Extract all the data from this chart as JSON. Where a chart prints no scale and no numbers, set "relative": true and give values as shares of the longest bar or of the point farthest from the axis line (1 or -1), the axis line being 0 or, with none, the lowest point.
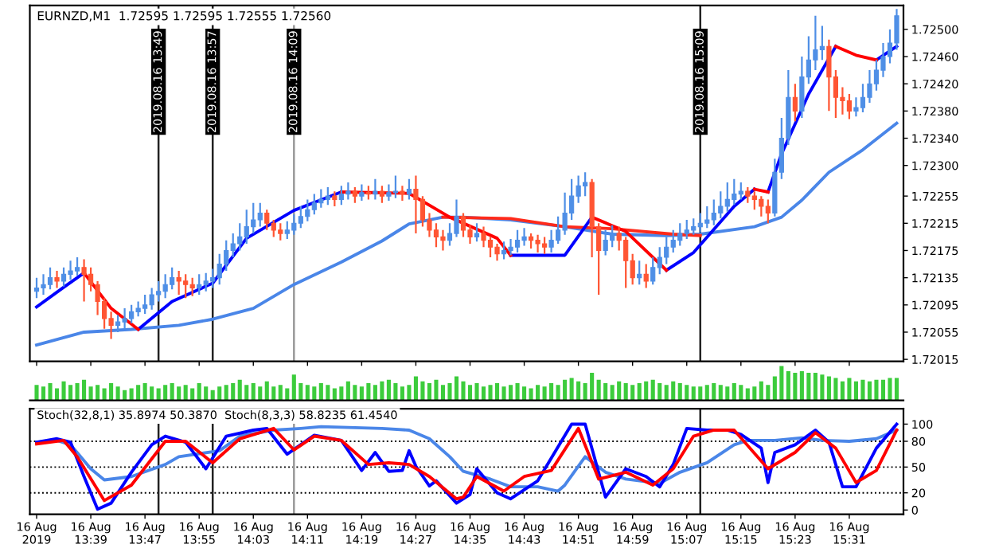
{
  "chart_data": [
    {
      "type": "candlestick",
      "title": "EURNZD,M1  1.72595 1.72595 1.72555 1.72560",
      "colors": [
        "#4f8fe6",
        "#4f8fe6",
        "#4f8fe6",
        "#ff5533",
        "#4f8fe6",
        "#4f8fe6",
        "#4f8fe6",
        "#ff5533",
        "#ff5533",
        "#ff5533",
        "#ff5533",
        "#ff5533",
        "#4f8fe6",
        "#4f8fe6",
        "#4f8fe6",
        "#4f8fe6",
        "#4f8fe6",
        "#4f8fe6",
        "#4f8fe6",
        "#4f8fe6",
        "#4f8fe6",
        "#ff5533",
        "#ff5533",
        "#ff5533",
        "#4f8fe6",
        "#4f8fe6",
        "#4f8fe6",
        "#4f8fe6",
        "#4f8fe6",
        "#4f8fe6",
        "#4f8fe6",
        "#4f8fe6",
        "#4f8fe6",
        "#4f8fe6",
        "#ff5533",
        "#ff5533",
        "#ff5533",
        "#4f8fe6",
        "#4f8fe6",
        "#4f8fe6",
        "#4f8fe6",
        "#4f8fe6",
        "#4f8fe6",
        "#4f8fe6",
        "#ff5533",
        "#4f8fe6",
        "#4f8fe6",
        "#ff5533",
        "#4f8fe6",
        "#ff5533",
        "#4f8fe6",
        "#ff5533",
        "#4f8fe6",
        "#4f8fe6",
        "#ff5533",
        "#4f8fe6",
        "#ff5533",
        "#ff5533",
        "#ff5533",
        "#ff5533",
        "#ff5533",
        "#4f8fe6",
        "#4f8fe6",
        "#ff5533",
        "#ff5533",
        "#4f8fe6",
        "#ff5533",
        "#ff5533",
        "#ff5533",
        "#4f8fe6",
        "#4f8fe6",
        "#4f8fe6",
        "#4f8fe6",
        "#ff5533",
        "#ff5533",
        "#ff5533",
        "#4f8fe6",
        "#4f8fe6",
        "#4f8fe6",
        "#4f8fe6",
        "#4f8fe6",
        "#4f8fe6",
        "#ff5533",
        "#ff5533",
        "#4f8fe6",
        "#4f8fe6",
        "#ff5533",
        "#ff5533",
        "#ff5533",
        "#4f8fe6",
        "#ff5533",
        "#4f8fe6",
        "#4f8fe6",
        "#4f8fe6",
        "#4f8fe6",
        "#4f8fe6",
        "#4f8fe6",
        "#4f8fe6",
        "#4f8fe6",
        "#4f8fe6",
        "#4f8fe6",
        "#4f8fe6",
        "#4f8fe6",
        "#4f8fe6",
        "#4f8fe6",
        "#ff5533",
        "#ff5533",
        "#ff5533",
        "#ff5533",
        "#4f8fe6",
        "#4f8fe6",
        "#4f8fe6",
        "#ff5533",
        "#4f8fe6",
        "#4f8fe6",
        "#4f8fe6",
        "#4f8fe6",
        "#ff5533",
        "#ff5533",
        "#ff5533",
        "#ff5533",
        "#4f8fe6",
        "#4f8fe6",
        "#4f8fe6",
        "#4f8fe6",
        "#4f8fe6",
        "#4f8fe6",
        "#4f8fe6"
      ],
      "x": [
        "2019-08-16T13:31",
        "2019-08-16T13:32",
        "2019-08-16T13:33",
        "2019-08-16T13:34",
        "2019-08-16T13:35",
        "2019-08-16T13:36",
        "2019-08-16T13:37",
        "2019-08-16T13:38",
        "2019-08-16T13:39",
        "2019-08-16T13:40",
        "2019-08-16T13:41",
        "2019-08-16T13:42",
        "2019-08-16T13:43",
        "2019-08-16T13:44",
        "2019-08-16T13:45",
        "2019-08-16T13:46",
        "2019-08-16T13:47",
        "2019-08-16T13:48",
        "2019-08-16T13:49",
        "2019-08-16T13:50",
        "2019-08-16T13:51",
        "2019-08-16T13:52",
        "2019-08-16T13:53",
        "2019-08-16T13:54",
        "2019-08-16T13:55",
        "2019-08-16T13:56",
        "2019-08-16T13:57",
        "2019-08-16T13:58",
        "2019-08-16T13:59",
        "2019-08-16T14:00",
        "2019-08-16T14:01",
        "2019-08-16T14:02",
        "2019-08-16T14:03",
        "2019-08-16T14:04",
        "2019-08-16T14:05",
        "2019-08-16T14:06",
        "2019-08-16T14:07",
        "2019-08-16T14:08",
        "2019-08-16T14:09",
        "2019-08-16T14:10",
        "2019-08-16T14:11",
        "2019-08-16T14:12",
        "2019-08-16T14:13",
        "2019-08-16T14:14",
        "2019-08-16T14:15",
        "2019-08-16T14:16",
        "2019-08-16T14:17",
        "2019-08-16T14:18",
        "2019-08-16T14:19",
        "2019-08-16T14:20",
        "2019-08-16T14:21",
        "2019-08-16T14:22",
        "2019-08-16T14:23",
        "2019-08-16T14:24",
        "2019-08-16T14:25",
        "2019-08-16T14:26",
        "2019-08-16T14:27",
        "2019-08-16T14:28",
        "2019-08-16T14:29",
        "2019-08-16T14:30",
        "2019-08-16T14:31",
        "2019-08-16T14:32",
        "2019-08-16T14:33",
        "2019-08-16T14:34",
        "2019-08-16T14:35",
        "2019-08-16T14:36",
        "2019-08-16T14:37",
        "2019-08-16T14:38",
        "2019-08-16T14:39",
        "2019-08-16T14:40",
        "2019-08-16T14:41",
        "2019-08-16T14:42",
        "2019-08-16T14:43",
        "2019-08-16T14:44",
        "2019-08-16T14:45",
        "2019-08-16T14:46",
        "2019-08-16T14:47",
        "2019-08-16T14:48",
        "2019-08-16T14:49",
        "2019-08-16T14:50",
        "2019-08-16T14:51",
        "2019-08-16T14:52",
        "2019-08-16T14:53",
        "2019-08-16T14:54",
        "2019-08-16T14:55",
        "2019-08-16T14:56",
        "2019-08-16T14:57",
        "2019-08-16T14:58",
        "2019-08-16T14:59",
        "2019-08-16T15:00",
        "2019-08-16T15:01",
        "2019-08-16T15:02",
        "2019-08-16T15:03",
        "2019-08-16T15:04",
        "2019-08-16T15:05",
        "2019-08-16T15:06",
        "2019-08-16T15:07",
        "2019-08-16T15:08",
        "2019-08-16T15:09",
        "2019-08-16T15:10",
        "2019-08-16T15:11",
        "2019-08-16T15:12",
        "2019-08-16T15:13",
        "2019-08-16T15:14",
        "2019-08-16T15:15",
        "2019-08-16T15:16",
        "2019-08-16T15:17",
        "2019-08-16T15:18",
        "2019-08-16T15:19",
        "2019-08-16T15:20",
        "2019-08-16T15:21",
        "2019-08-16T15:22",
        "2019-08-16T15:23",
        "2019-08-16T15:24",
        "2019-08-16T15:25",
        "2019-08-16T15:26",
        "2019-08-16T15:27",
        "2019-08-16T15:28",
        "2019-08-16T15:29",
        "2019-08-16T15:30",
        "2019-08-16T15:31",
        "2019-08-16T15:32",
        "2019-08-16T15:33",
        "2019-08-16T15:34",
        "2019-08-16T15:35",
        "2019-08-16T15:36",
        "2019-08-16T15:37",
        "2019-08-16T15:38"
      ],
      "ohlc": [
        [
          1.72115,
          1.72135,
          1.72105,
          1.7212
        ],
        [
          1.7212,
          1.7214,
          1.7211,
          1.72125
        ],
        [
          1.72125,
          1.7215,
          1.72118,
          1.72135
        ],
        [
          1.72135,
          1.72145,
          1.7212,
          1.7213
        ],
        [
          1.7213,
          1.7215,
          1.72122,
          1.7214
        ],
        [
          1.7214,
          1.7216,
          1.72132,
          1.72145
        ],
        [
          1.72145,
          1.72165,
          1.72138,
          1.7215
        ],
        [
          1.7215,
          1.72162,
          1.721,
          1.7214
        ],
        [
          1.7214,
          1.7215,
          1.72115,
          1.72125
        ],
        [
          1.72125,
          1.7213,
          1.7208,
          1.721
        ],
        [
          1.721,
          1.72105,
          1.7206,
          1.72075
        ],
        [
          1.72075,
          1.72085,
          1.72045,
          1.72065
        ],
        [
          1.72065,
          1.7208,
          1.72055,
          1.7207
        ],
        [
          1.7207,
          1.7209,
          1.7206,
          1.72075
        ],
        [
          1.72075,
          1.72095,
          1.72068,
          1.72085
        ],
        [
          1.72085,
          1.721,
          1.72078,
          1.7209
        ],
        [
          1.7209,
          1.7211,
          1.72082,
          1.72095
        ],
        [
          1.72095,
          1.7212,
          1.72088,
          1.7211
        ],
        [
          1.7211,
          1.7213,
          1.721,
          1.72115
        ],
        [
          1.72115,
          1.7214,
          1.72105,
          1.72125
        ],
        [
          1.72125,
          1.7215,
          1.72118,
          1.72135
        ],
        [
          1.72135,
          1.72145,
          1.7211,
          1.7213
        ],
        [
          1.7213,
          1.7214,
          1.72105,
          1.72125
        ],
        [
          1.72125,
          1.72135,
          1.72108,
          1.7212
        ],
        [
          1.7212,
          1.7214,
          1.7211,
          1.72125
        ],
        [
          1.72125,
          1.72142,
          1.72115,
          1.7213
        ],
        [
          1.7213,
          1.72148,
          1.7212,
          1.72135
        ],
        [
          1.72135,
          1.7217,
          1.72125,
          1.72155
        ],
        [
          1.72155,
          1.7219,
          1.72145,
          1.72175
        ],
        [
          1.72175,
          1.722,
          1.72165,
          1.72185
        ],
        [
          1.72185,
          1.72215,
          1.72175,
          1.72195
        ],
        [
          1.72195,
          1.72235,
          1.72185,
          1.7221
        ],
        [
          1.7221,
          1.72245,
          1.722,
          1.7222
        ],
        [
          1.7222,
          1.72245,
          1.7221,
          1.7223
        ],
        [
          1.7223,
          1.72235,
          1.72205,
          1.72215
        ],
        [
          1.72215,
          1.7222,
          1.72195,
          1.72205
        ],
        [
          1.72205,
          1.72215,
          1.7219,
          1.722
        ],
        [
          1.722,
          1.72218,
          1.72192,
          1.72205
        ],
        [
          1.72205,
          1.72228,
          1.72198,
          1.72215
        ],
        [
          1.72215,
          1.7224,
          1.72208,
          1.72225
        ],
        [
          1.72225,
          1.7225,
          1.72218,
          1.72235
        ],
        [
          1.72235,
          1.72258,
          1.72228,
          1.72245
        ],
        [
          1.72245,
          1.72265,
          1.72238,
          1.7225
        ],
        [
          1.7225,
          1.72268,
          1.72242,
          1.72255
        ],
        [
          1.72255,
          1.72262,
          1.7224,
          1.7225
        ],
        [
          1.7225,
          1.7227,
          1.72242,
          1.72258
        ],
        [
          1.72258,
          1.72275,
          1.7225,
          1.72262
        ],
        [
          1.72262,
          1.72268,
          1.72245,
          1.72255
        ],
        [
          1.72255,
          1.72272,
          1.72248,
          1.7226
        ],
        [
          1.7226,
          1.7227,
          1.7225,
          1.72258
        ],
        [
          1.72258,
          1.7228,
          1.7225,
          1.72262
        ],
        [
          1.72262,
          1.7227,
          1.72245,
          1.72255
        ],
        [
          1.72255,
          1.72272,
          1.72248,
          1.7226
        ],
        [
          1.7226,
          1.72285,
          1.72252,
          1.72262
        ],
        [
          1.72262,
          1.7227,
          1.72248,
          1.72258
        ],
        [
          1.72258,
          1.7228,
          1.7225,
          1.72265
        ],
        [
          1.72265,
          1.72285,
          1.722,
          1.7225
        ],
        [
          1.7225,
          1.72255,
          1.7221,
          1.7222
        ],
        [
          1.7222,
          1.7223,
          1.72195,
          1.72205
        ],
        [
          1.72205,
          1.72215,
          1.7218,
          1.72195
        ],
        [
          1.72195,
          1.72205,
          1.72175,
          1.7219
        ],
        [
          1.7219,
          1.72215,
          1.72182,
          1.722
        ],
        [
          1.722,
          1.7225,
          1.72195,
          1.72225
        ],
        [
          1.72225,
          1.7223,
          1.72195,
          1.72205
        ],
        [
          1.72205,
          1.72212,
          1.72185,
          1.72195
        ],
        [
          1.72195,
          1.72215,
          1.72188,
          1.722
        ],
        [
          1.722,
          1.7221,
          1.7218,
          1.7219
        ],
        [
          1.7219,
          1.72195,
          1.72165,
          1.7218
        ],
        [
          1.7218,
          1.72185,
          1.7216,
          1.7217
        ],
        [
          1.7217,
          1.72188,
          1.72162,
          1.72175
        ],
        [
          1.72175,
          1.72192,
          1.72168,
          1.7218
        ],
        [
          1.7218,
          1.72205,
          1.72172,
          1.7219
        ],
        [
          1.7219,
          1.72208,
          1.72182,
          1.72195
        ],
        [
          1.72195,
          1.722,
          1.72178,
          1.7219
        ],
        [
          1.7219,
          1.72198,
          1.72172,
          1.72185
        ],
        [
          1.72185,
          1.72195,
          1.7217,
          1.7218
        ],
        [
          1.7218,
          1.72205,
          1.72172,
          1.7219
        ],
        [
          1.7219,
          1.72225,
          1.72185,
          1.72205
        ],
        [
          1.72205,
          1.7226,
          1.72198,
          1.7223
        ],
        [
          1.7223,
          1.7228,
          1.7222,
          1.72255
        ],
        [
          1.72255,
          1.72285,
          1.72245,
          1.7227
        ],
        [
          1.7227,
          1.7229,
          1.72255,
          1.72275
        ],
        [
          1.72275,
          1.7228,
          1.72165,
          1.7221
        ],
        [
          1.7221,
          1.72215,
          1.7211,
          1.72175
        ],
        [
          1.72175,
          1.72205,
          1.72168,
          1.7219
        ],
        [
          1.7219,
          1.72212,
          1.7218,
          1.722
        ],
        [
          1.722,
          1.7221,
          1.72175,
          1.7219
        ],
        [
          1.7219,
          1.72195,
          1.7212,
          1.7216
        ],
        [
          1.7216,
          1.7217,
          1.72125,
          1.72135
        ],
        [
          1.72135,
          1.7216,
          1.72125,
          1.7214
        ],
        [
          1.7214,
          1.72155,
          1.7212,
          1.7213
        ],
        [
          1.7213,
          1.72165,
          1.72125,
          1.7215
        ],
        [
          1.7215,
          1.7218,
          1.7214,
          1.72165
        ],
        [
          1.72165,
          1.72195,
          1.72155,
          1.7218
        ],
        [
          1.7218,
          1.72205,
          1.72172,
          1.7219
        ],
        [
          1.7219,
          1.72215,
          1.72182,
          1.722
        ],
        [
          1.722,
          1.7222,
          1.72192,
          1.72205
        ],
        [
          1.72205,
          1.72222,
          1.72198,
          1.7221
        ],
        [
          1.7221,
          1.7223,
          1.72202,
          1.72215
        ],
        [
          1.72215,
          1.7224,
          1.72208,
          1.7222
        ],
        [
          1.7222,
          1.7225,
          1.72212,
          1.7223
        ],
        [
          1.7223,
          1.72262,
          1.72222,
          1.7224
        ],
        [
          1.7224,
          1.72275,
          1.72232,
          1.7225
        ],
        [
          1.7225,
          1.7228,
          1.72242,
          1.72258
        ],
        [
          1.72258,
          1.72275,
          1.7225,
          1.72262
        ],
        [
          1.72262,
          1.72268,
          1.72245,
          1.72255
        ],
        [
          1.72255,
          1.72262,
          1.72235,
          1.7225
        ],
        [
          1.7225,
          1.72255,
          1.72225,
          1.7224
        ],
        [
          1.7224,
          1.7225,
          1.72215,
          1.7223
        ],
        [
          1.7223,
          1.7231,
          1.72225,
          1.7229
        ],
        [
          1.7229,
          1.7237,
          1.7228,
          1.7234
        ],
        [
          1.7234,
          1.7244,
          1.7233,
          1.724
        ],
        [
          1.724,
          1.7242,
          1.72365,
          1.7238
        ],
        [
          1.7238,
          1.7246,
          1.7237,
          1.7243
        ],
        [
          1.7243,
          1.7249,
          1.7242,
          1.72455
        ],
        [
          1.72455,
          1.7252,
          1.7244,
          1.7247
        ],
        [
          1.7247,
          1.72505,
          1.72455,
          1.72475
        ],
        [
          1.72475,
          1.72485,
          1.7238,
          1.7243
        ],
        [
          1.7243,
          1.7244,
          1.7237,
          1.724
        ],
        [
          1.724,
          1.72415,
          1.72375,
          1.72395
        ],
        [
          1.72395,
          1.72405,
          1.72368,
          1.7238
        ],
        [
          1.7238,
          1.724,
          1.72372,
          1.72385
        ],
        [
          1.72385,
          1.7242,
          1.72378,
          1.724
        ],
        [
          1.724,
          1.7244,
          1.72392,
          1.7242
        ],
        [
          1.7242,
          1.72455,
          1.7241,
          1.7244
        ],
        [
          1.7244,
          1.7248,
          1.7243,
          1.7246
        ],
        [
          1.7246,
          1.725,
          1.7245,
          1.7248
        ],
        [
          1.7248,
          1.7253,
          1.7247,
          1.7252
        ]
      ],
      "series": [
        {
          "type": "line",
          "color": "#4a86e8",
          "x": [
            "2019-08-16T13:31",
            "2019-08-16T13:38",
            "2019-08-16T13:45",
            "2019-08-16T13:52",
            "2019-08-16T13:57",
            "2019-08-16T14:03",
            "2019-08-16T14:09",
            "2019-08-16T14:16",
            "2019-08-16T14:22",
            "2019-08-16T14:26",
            "2019-08-16T14:31",
            "2019-08-16T14:34",
            "2019-08-16T14:41",
            "2019-08-16T14:49",
            "2019-08-16T14:56",
            "2019-08-16T15:04",
            "2019-08-16T15:09",
            "2019-08-16T15:17",
            "2019-08-16T15:21",
            "2019-08-16T15:24",
            "2019-08-16T15:28",
            "2019-08-16T15:33",
            "2019-08-16T15:38"
          ],
          "values": [
            1.72036,
            1.72055,
            1.72059,
            1.72065,
            1.72074,
            1.7209,
            1.72125,
            1.72158,
            1.72189,
            1.72214,
            1.72224,
            1.72224,
            1.7222,
            1.7221,
            1.72199,
            1.72197,
            1.72199,
            1.7221,
            1.72224,
            1.72249,
            1.7229,
            1.72323,
            1.72362
          ]
        },
        {
          "type": "line",
          "color": "#ff2a1a",
          "x": [
            "2019-08-16T14:31",
            "2019-08-16T14:41",
            "2019-08-16T14:49",
            "2019-08-16T14:56",
            "2019-08-16T15:05",
            "2019-08-16T15:09"
          ],
          "values": [
            1.72224,
            1.72222,
            1.7221,
            1.72207,
            1.72199,
            1.72197
          ]
        },
        {
          "type": "line",
          "color": "#0000ff",
          "x": [
            "2019-08-16T13:31",
            "2019-08-16T13:35",
            "2019-08-16T13:38",
            "2019-08-16T13:42",
            "2019-08-16T13:46",
            "2019-08-16T13:51",
            "2019-08-16T13:57",
            "2019-08-16T14:02",
            "2019-08-16T14:09",
            "2019-08-16T14:16",
            "2019-08-16T14:26",
            "2019-08-16T14:41",
            "2019-08-16T14:49",
            "2019-08-16T14:53",
            "2019-08-16T14:58",
            "2019-08-16T15:04",
            "2019-08-16T15:08",
            "2019-08-16T15:14",
            "2019-08-16T15:17",
            "2019-08-16T15:18",
            "2019-08-16T15:19",
            "2019-08-16T15:21",
            "2019-08-16T15:25",
            "2019-08-16T15:29",
            "2019-08-16T15:32",
            "2019-08-16T15:35",
            "2019-08-16T15:38"
          ],
          "values": [
            1.72092,
            1.72121,
            1.72142,
            null,
            1.72059,
            1.721,
            1.72127,
            1.72193,
            1.72234,
            1.72261,
            null,
            1.72168,
            1.72168,
            1.72224,
            null,
            1.72146,
            1.72172,
            1.7224,
            1.72265,
            null,
            1.72261,
            1.72317,
            1.72405,
            1.72475,
            null,
            1.72455,
            1.72475
          ]
        },
        {
          "type": "line",
          "color": "#ff0000",
          "x": [
            "2019-08-16T13:38",
            "2019-08-16T13:42",
            "2019-08-16T13:46",
            "2019-08-16T14:00",
            "2019-08-16T14:16",
            "2019-08-16T14:26",
            "2019-08-16T14:32",
            "2019-08-16T14:39",
            "2019-08-16T14:41",
            "2019-08-16T14:47",
            "2019-08-16T14:53",
            "2019-08-16T14:58",
            "2019-08-16T15:04",
            "2019-08-16T15:10",
            "2019-08-16T15:17",
            "2019-08-16T15:19",
            "2019-08-16T15:22",
            "2019-08-16T15:29",
            "2019-08-16T15:32",
            "2019-08-16T15:35"
          ],
          "values": [
            1.72142,
            1.7209,
            1.72059,
            null,
            1.72261,
            1.72259,
            1.72224,
            1.72193,
            1.72168,
            null,
            1.72224,
            1.72203,
            1.72146,
            null,
            1.72265,
            1.72261,
            null,
            1.72475,
            1.72462,
            1.72455
          ]
        }
      ],
      "ref_lines": [
        {
          "axis": "x",
          "value": "2019-08-16T13:49",
          "label": "2019.08.16 13:49",
          "color": "#222222"
        },
        {
          "axis": "x",
          "value": "2019-08-16T13:57",
          "label": "2019.08.16 13:57",
          "color": "#222222"
        },
        {
          "axis": "x",
          "value": "2019-08-16T14:09",
          "label": "2019.08.16 14:09",
          "color": "#999999"
        },
        {
          "axis": "x",
          "value": "2019-08-16T15:09",
          "label": "2019.08.16 15:09",
          "color": "#222222"
        }
      ],
      "xlim": [
        "2019-08-16T13:30",
        "2019-08-16T15:39"
      ],
      "xticks": [
        "2019-08-16T13:31",
        "2019-08-16T13:39",
        "2019-08-16T13:47",
        "2019-08-16T13:55",
        "2019-08-16T14:03",
        "2019-08-16T14:11",
        "2019-08-16T14:19",
        "2019-08-16T14:27",
        "2019-08-16T14:35",
        "2019-08-16T14:43",
        "2019-08-16T14:51",
        "2019-08-16T14:59",
        "2019-08-16T15:07",
        "2019-08-16T15:15",
        "2019-08-16T15:23",
        "2019-08-16T15:31"
      ],
      "ylim": [
        1.72012,
        1.72535
      ],
      "yticks": [
        {
          "value": 1.725,
          "label": "1.72500"
        },
        {
          "value": 1.7246,
          "label": "1.72460"
        },
        {
          "value": 1.7242,
          "label": "1.72420"
        },
        {
          "value": 1.7238,
          "label": "1.72380"
        },
        {
          "value": 1.7234,
          "label": "1.72340"
        },
        {
          "value": 1.723,
          "label": "1.72300"
        },
        {
          "value": 1.72255,
          "label": "1.72255"
        },
        {
          "value": 1.72215,
          "label": "1.72215"
        },
        {
          "value": 1.72175,
          "label": "1.72175"
        },
        {
          "value": 1.72135,
          "label": "1.72135"
        },
        {
          "value": 1.72095,
          "label": "1.72095"
        },
        {
          "value": 1.72055,
          "label": "1.72055"
        },
        {
          "value": 1.72015,
          "label": "1.72015"
        }
      ],
      "tick_labels": "y",
      "grid": false,
      "legend": false
    },
    {
      "type": "bar",
      "relative": true,
      "color": "#3ccc3c",
      "tick_labels": false,
      "categories": [
        null,
        null,
        null,
        null,
        null,
        null,
        null,
        null,
        null,
        null,
        null,
        null,
        null,
        null,
        null,
        null,
        null,
        null,
        null,
        null,
        null,
        null,
        null,
        null,
        null,
        null,
        null,
        null,
        null,
        null,
        null,
        null,
        null,
        null,
        null,
        null,
        null,
        null,
        null,
        null,
        null,
        null,
        null,
        null,
        null,
        null,
        null,
        null,
        null,
        null,
        null,
        null,
        null,
        null,
        null,
        null,
        null,
        null,
        null,
        null,
        null,
        null,
        null,
        null,
        null,
        null,
        null,
        null,
        null,
        null,
        null,
        null,
        null,
        null,
        null,
        null,
        null,
        null,
        null,
        null,
        null,
        null,
        null,
        null,
        null,
        null,
        null,
        null,
        null,
        null,
        null,
        null,
        null,
        null,
        null,
        null,
        null,
        null,
        null,
        null,
        null,
        null,
        null,
        null,
        null,
        null,
        null,
        null,
        null,
        null,
        null,
        null,
        null,
        null,
        null,
        null,
        null,
        null,
        null,
        null,
        null,
        null,
        null,
        null,
        null,
        null,
        null,
        null
      ],
      "values": [
        0.45,
        0.4,
        0.5,
        0.35,
        0.55,
        0.45,
        0.5,
        0.6,
        0.4,
        0.45,
        0.35,
        0.5,
        0.4,
        0.3,
        0.35,
        0.45,
        0.5,
        0.4,
        0.35,
        0.45,
        0.5,
        0.4,
        0.45,
        0.35,
        0.5,
        0.4,
        0.3,
        0.4,
        0.45,
        0.5,
        0.6,
        0.45,
        0.5,
        0.4,
        0.55,
        0.4,
        0.45,
        0.35,
        0.75,
        0.5,
        0.45,
        0.4,
        0.5,
        0.45,
        0.35,
        0.4,
        0.55,
        0.45,
        0.4,
        0.5,
        0.45,
        0.55,
        0.6,
        0.5,
        0.4,
        0.45,
        0.7,
        0.55,
        0.5,
        0.6,
        0.45,
        0.5,
        0.7,
        0.55,
        0.45,
        0.5,
        0.4,
        0.45,
        0.5,
        0.4,
        0.45,
        0.5,
        0.4,
        0.35,
        0.45,
        0.4,
        0.5,
        0.45,
        0.6,
        0.65,
        0.55,
        0.5,
        0.8,
        0.6,
        0.5,
        0.45,
        0.55,
        0.5,
        0.45,
        0.5,
        0.55,
        0.6,
        0.5,
        0.45,
        0.55,
        0.5,
        0.45,
        0.4,
        0.4,
        0.45,
        0.5,
        0.45,
        0.4,
        0.5,
        0.45,
        0.35,
        0.4,
        0.55,
        0.45,
        0.7,
        1.0,
        0.85,
        0.8,
        0.85,
        0.8,
        0.8,
        0.75,
        0.7,
        0.65,
        0.55,
        0.65,
        0.55,
        0.6,
        0.55,
        0.6,
        0.6,
        0.65,
        0.65
      ]
    },
    {
      "type": "line",
      "annotations": [
        "Stoch(32,8,1) 35.8974 50.3870  Stoch(8,3,3) 58.8235 61.4540"
      ],
      "series": [
        {
          "color": "#4a86e8",
          "x": [
            "2019-08-16T13:31",
            "2019-08-16T13:34",
            "2019-08-16T13:36",
            "2019-08-16T13:39",
            "2019-08-16T13:41",
            "2019-08-16T13:45",
            "2019-08-16T13:50",
            "2019-08-16T13:52",
            "2019-08-16T13:58",
            "2019-08-16T14:01",
            "2019-08-16T14:06",
            "2019-08-16T14:10",
            "2019-08-16T14:13",
            "2019-08-16T14:22",
            "2019-08-16T14:26",
            "2019-08-16T14:29",
            "2019-08-16T14:32",
            "2019-08-16T14:34",
            "2019-08-16T14:38",
            "2019-08-16T14:41",
            "2019-08-16T14:45",
            "2019-08-16T14:48",
            "2019-08-16T14:49",
            "2019-08-16T14:52",
            "2019-08-16T14:55",
            "2019-08-16T14:58",
            "2019-08-16T15:03",
            "2019-08-16T15:06",
            "2019-08-16T15:10",
            "2019-08-16T15:14",
            "2019-08-16T15:16",
            "2019-08-16T15:20",
            "2019-08-16T15:24",
            "2019-08-16T15:27",
            "2019-08-16T15:31",
            "2019-08-16T15:35",
            "2019-08-16T15:38"
          ],
          "values": [
            79,
            81,
            76,
            48,
            35,
            39,
            53,
            62,
            69,
            86,
            93,
            95,
            97,
            95,
            93,
            83,
            62,
            45,
            36,
            27,
            27,
            22,
            29,
            62,
            44,
            36,
            31,
            44,
            55,
            76,
            81,
            81,
            84,
            81,
            80,
            83,
            93
          ]
        },
        {
          "color": "#0000ff",
          "x": [
            "2019-08-16T13:31",
            "2019-08-16T13:34",
            "2019-08-16T13:36",
            "2019-08-16T13:38",
            "2019-08-16T13:40",
            "2019-08-16T13:42",
            "2019-08-16T13:45",
            "2019-08-16T13:48",
            "2019-08-16T13:50",
            "2019-08-16T13:53",
            "2019-08-16T13:56",
            "2019-08-16T13:59",
            "2019-08-16T14:03",
            "2019-08-16T14:05",
            "2019-08-16T14:08",
            "2019-08-16T14:12",
            "2019-08-16T14:16",
            "2019-08-16T14:19",
            "2019-08-16T14:21",
            "2019-08-16T14:23",
            "2019-08-16T14:25",
            "2019-08-16T14:26",
            "2019-08-16T14:27",
            "2019-08-16T14:29",
            "2019-08-16T14:30",
            "2019-08-16T14:33",
            "2019-08-16T14:35",
            "2019-08-16T14:36",
            "2019-08-16T14:39",
            "2019-08-16T14:41",
            "2019-08-16T14:45",
            "2019-08-16T14:50",
            "2019-08-16T14:52",
            "2019-08-16T14:55",
            "2019-08-16T14:58",
            "2019-08-16T15:01",
            "2019-08-16T15:03",
            "2019-08-16T15:05",
            "2019-08-16T15:07",
            "2019-08-16T15:10",
            "2019-08-16T15:13",
            "2019-08-16T15:15",
            "2019-08-16T15:18",
            "2019-08-16T15:19",
            "2019-08-16T15:20",
            "2019-08-16T15:23",
            "2019-08-16T15:26",
            "2019-08-16T15:28",
            "2019-08-16T15:30",
            "2019-08-16T15:32",
            "2019-08-16T15:35",
            "2019-08-16T15:38"
          ],
          "values": [
            79,
            83,
            79,
            39,
            1,
            8,
            44,
            76,
            86,
            79,
            48,
            86,
            93,
            95,
            65,
            87,
            81,
            46,
            67,
            45,
            46,
            69,
            51,
            28,
            34,
            8,
            18,
            48,
            20,
            13,
            34,
            100,
            100,
            15,
            48,
            39,
            27,
            53,
            95,
            93,
            93,
            88,
            72,
            32,
            67,
            76,
            93,
            79,
            27,
            27,
            72,
            100
          ]
        },
        {
          "color": "#ff0000",
          "x": [
            "2019-08-16T13:31",
            "2019-08-16T13:35",
            "2019-08-16T13:37",
            "2019-08-16T13:41",
            "2019-08-16T13:45",
            "2019-08-16T13:50",
            "2019-08-16T13:53",
            "2019-08-16T13:57",
            "2019-08-16T14:01",
            "2019-08-16T14:06",
            "2019-08-16T14:09",
            "2019-08-16T14:12",
            "2019-08-16T14:16",
            "2019-08-16T14:20",
            "2019-08-16T14:23",
            "2019-08-16T14:26",
            "2019-08-16T14:29",
            "2019-08-16T14:33",
            "2019-08-16T14:34",
            "2019-08-16T14:36",
            "2019-08-16T14:40",
            "2019-08-16T14:43",
            "2019-08-16T14:47",
            "2019-08-16T14:51",
            "2019-08-16T14:54",
            "2019-08-16T14:58",
            "2019-08-16T15:02",
            "2019-08-16T15:05",
            "2019-08-16T15:08",
            "2019-08-16T15:11",
            "2019-08-16T15:14",
            "2019-08-16T15:19",
            "2019-08-16T15:23",
            "2019-08-16T15:26",
            "2019-08-16T15:29",
            "2019-08-16T15:32",
            "2019-08-16T15:35",
            "2019-08-16T15:38"
          ],
          "values": [
            77,
            81,
            62,
            11,
            29,
            80,
            80,
            55,
            83,
            95,
            70,
            86,
            81,
            53,
            55,
            53,
            39,
            13,
            15,
            39,
            22,
            39,
            46,
            95,
            36,
            44,
            29,
            48,
            86,
            93,
            93,
            48,
            67,
            90,
            72,
            32,
            46,
            93
          ]
        }
      ],
      "ref_lines": [
        {
          "axis": "y",
          "value": 80,
          "line_style": "dotted",
          "color": "#000000"
        },
        {
          "axis": "y",
          "value": 50,
          "line_style": "dotted",
          "color": "#000000"
        },
        {
          "axis": "y",
          "value": 20,
          "line_style": "dotted",
          "color": "#000000"
        },
        {
          "axis": "x",
          "value": "2019-08-16T13:49",
          "color": "#222222"
        },
        {
          "axis": "x",
          "value": "2019-08-16T13:57",
          "color": "#222222"
        },
        {
          "axis": "x",
          "value": "2019-08-16T14:09",
          "color": "#999999"
        },
        {
          "axis": "x",
          "value": "2019-08-16T15:09",
          "color": "#222222"
        }
      ],
      "xlim": [
        "2019-08-16T13:30",
        "2019-08-16T15:39"
      ],
      "xticks": [
        {
          "value": "2019-08-16T13:31",
          "label": "16 Aug 2019"
        },
        {
          "value": "2019-08-16T13:39",
          "label": "16 Aug 13:39"
        },
        {
          "value": "2019-08-16T13:47",
          "label": "16 Aug 13:47"
        },
        {
          "value": "2019-08-16T13:55",
          "label": "16 Aug 13:55"
        },
        {
          "value": "2019-08-16T14:03",
          "label": "16 Aug 14:03"
        },
        {
          "value": "2019-08-16T14:11",
          "label": "16 Aug 14:11"
        },
        {
          "value": "2019-08-16T14:19",
          "label": "16 Aug 14:19"
        },
        {
          "value": "2019-08-16T14:27",
          "label": "16 Aug 14:27"
        },
        {
          "value": "2019-08-16T14:35",
          "label": "16 Aug 14:35"
        },
        {
          "value": "2019-08-16T14:43",
          "label": "16 Aug 14:43"
        },
        {
          "value": "2019-08-16T14:51",
          "label": "16 Aug 14:51"
        },
        {
          "value": "2019-08-16T14:59",
          "label": "16 Aug 14:59"
        },
        {
          "value": "2019-08-16T15:07",
          "label": "16 Aug 15:07"
        },
        {
          "value": "2019-08-16T15:15",
          "label": "16 Aug 15:15"
        },
        {
          "value": "2019-08-16T15:23",
          "label": "16 Aug 15:23"
        },
        {
          "value": "2019-08-16T15:31",
          "label": "16 Aug 15:31"
        }
      ],
      "ylim": [
        -5,
        118
      ],
      "yticks": [
        0,
        20,
        50,
        80,
        100
      ],
      "grid": false,
      "legend": false
    }
  ]
}
